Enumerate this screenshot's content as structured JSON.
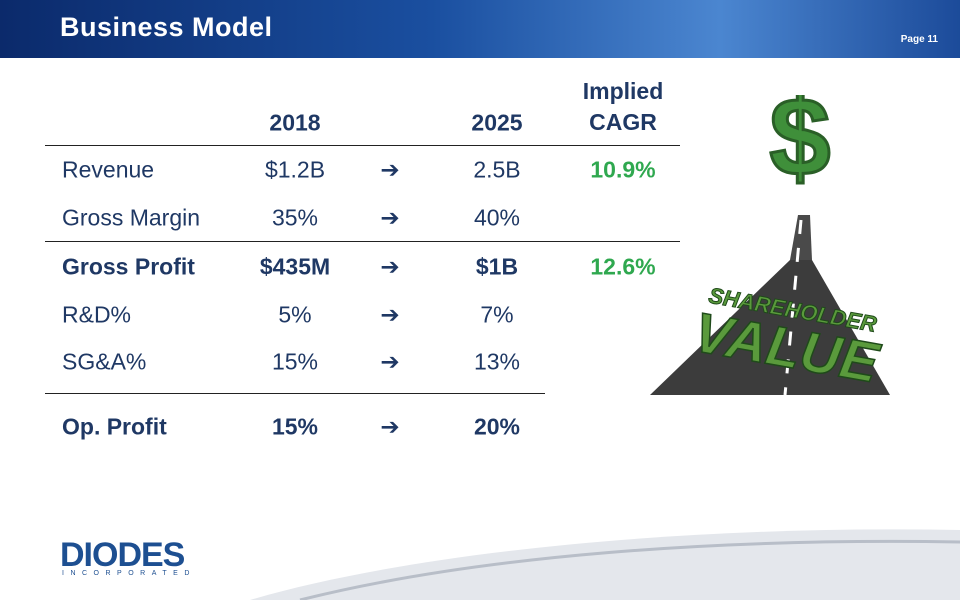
{
  "header": {
    "title": "Business Model",
    "page": "Page 11"
  },
  "table": {
    "columns": {
      "first": "2018",
      "second": "2025",
      "cagr": "Implied CAGR"
    },
    "rows": [
      {
        "label": "Revenue",
        "first": "$1.2B",
        "second": "2.5B",
        "cagr": "10.9%",
        "bold": false
      },
      {
        "label": "Gross Margin",
        "first": "35%",
        "second": "40%",
        "bold": false
      },
      {
        "label": "Gross Profit",
        "first": "$435M",
        "second": "$1B",
        "cagr": "12.6%",
        "bold": true
      },
      {
        "label": "R&D%",
        "first": "5%",
        "second": "7%",
        "bold": false
      },
      {
        "label": "SG&A%",
        "first": "15%",
        "second": "13%",
        "bold": false
      },
      {
        "label": "Op. Profit",
        "first": "15%",
        "second": "20%",
        "bold": true
      }
    ]
  },
  "illustration": {
    "line1": "SHAREHOLDER",
    "line2": "VALUE"
  },
  "logo": {
    "name": "DIODES",
    "sub": "INCORPORATED"
  }
}
